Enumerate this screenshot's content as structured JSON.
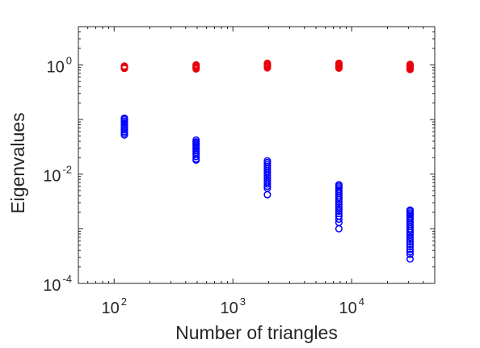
{
  "chart_data": {
    "type": "scatter",
    "title": "",
    "xlabel": "Number of triangles",
    "ylabel": "Eigenvalues",
    "x_scale": "log",
    "y_scale": "log",
    "xlim": [
      50,
      50000
    ],
    "ylim": [
      0.0001,
      5
    ],
    "x_ticks": [
      {
        "base": "10",
        "exp": "2",
        "value": 100
      },
      {
        "base": "10",
        "exp": "3",
        "value": 1000
      },
      {
        "base": "10",
        "exp": "4",
        "value": 10000
      }
    ],
    "y_ticks": [
      {
        "base": "10",
        "exp": "-4",
        "value": 0.0001
      },
      {
        "base": "10",
        "exp": "-2",
        "value": 0.01
      },
      {
        "base": "10",
        "exp": "0",
        "value": 1
      }
    ],
    "grid": false,
    "legend": "none",
    "marker": "open-circle",
    "series": [
      {
        "color": "#e8000b",
        "points": [
          {
            "x": 122,
            "y": [
              0.86,
              0.89,
              0.92,
              0.95
            ]
          },
          {
            "x": 490,
            "y": [
              0.84,
              0.88,
              0.92,
              0.96,
              1.0
            ]
          },
          {
            "x": 1950,
            "y": [
              0.88,
              0.92,
              0.96,
              1.0,
              1.04,
              1.07
            ]
          },
          {
            "x": 7800,
            "y": [
              0.87,
              0.91,
              0.95,
              0.99,
              1.03,
              1.07
            ]
          },
          {
            "x": 31000,
            "y": [
              0.82,
              0.86,
              0.9,
              0.94,
              0.98,
              1.02
            ]
          }
        ]
      },
      {
        "color": "#0000ff",
        "points": [
          {
            "x": 122,
            "y": [
              0.052,
              0.056,
              0.06,
              0.065,
              0.07,
              0.075,
              0.081,
              0.087,
              0.093,
              0.1,
              0.106
            ]
          },
          {
            "x": 490,
            "y": [
              0.018,
              0.019,
              0.021,
              0.023,
              0.025,
              0.027,
              0.029,
              0.031,
              0.033,
              0.035,
              0.037,
              0.039,
              0.042
            ]
          },
          {
            "x": 1950,
            "y": [
              0.0042,
              0.0055,
              0.006,
              0.0066,
              0.0072,
              0.0079,
              0.0087,
              0.0096,
              0.0105,
              0.0115,
              0.0126,
              0.0138,
              0.015,
              0.0163,
              0.0175
            ]
          },
          {
            "x": 7800,
            "y": [
              0.001,
              0.0013,
              0.0015,
              0.0017,
              0.0019,
              0.0021,
              0.0023,
              0.0025,
              0.0028,
              0.0031,
              0.0034,
              0.0037,
              0.004,
              0.0044,
              0.0048,
              0.0052,
              0.0056,
              0.006,
              0.0064
            ]
          },
          {
            "x": 31000,
            "y": [
              0.00028,
              0.00034,
              0.00038,
              0.00042,
              0.00047,
              0.00052,
              0.00058,
              0.00064,
              0.0007,
              0.00077,
              0.00085,
              0.00093,
              0.001,
              0.0011,
              0.0012,
              0.00132,
              0.00145,
              0.00158,
              0.0017,
              0.00182,
              0.00195,
              0.0021,
              0.0022
            ]
          }
        ]
      }
    ]
  }
}
